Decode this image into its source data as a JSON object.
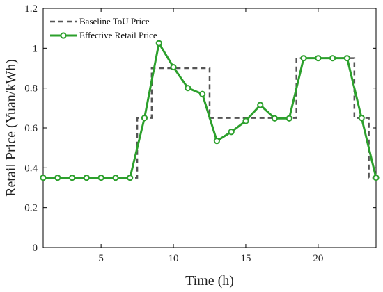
{
  "chart_data": {
    "type": "line",
    "xlabel": "Time (h)",
    "ylabel": "Retail Price (Yuan/kWh)",
    "xlim": [
      1,
      24
    ],
    "ylim": [
      0,
      1.2
    ],
    "xticks": [
      5,
      10,
      15,
      20
    ],
    "yticks": [
      0,
      0.2,
      0.4,
      0.6,
      0.8,
      1,
      1.2
    ],
    "xtick_labels": [
      "5",
      "10",
      "15",
      "20"
    ],
    "ytick_labels": [
      "0",
      "0.2",
      "0.4",
      "0.6",
      "0.8",
      "1",
      "1.2"
    ],
    "legend_position": "top-left",
    "series": [
      {
        "name": "Baseline ToU Price",
        "style": "dashed",
        "color": "#555555",
        "x": [
          1,
          7.5,
          7.5,
          8.5,
          8.5,
          12.5,
          12.5,
          18.5,
          18.5,
          22.5,
          22.5,
          23.5,
          23.5,
          24
        ],
        "y": [
          0.35,
          0.35,
          0.65,
          0.65,
          0.9,
          0.9,
          0.65,
          0.65,
          0.95,
          0.95,
          0.65,
          0.65,
          0.35,
          0.35
        ]
      },
      {
        "name": "Effective Retail Price",
        "style": "solid-with-circle-markers",
        "color": "#2ca02c",
        "x": [
          1,
          2,
          3,
          4,
          5,
          6,
          7,
          8,
          9,
          10,
          11,
          12,
          13,
          14,
          15,
          16,
          17,
          18,
          19,
          20,
          21,
          22,
          23,
          24
        ],
        "y": [
          0.35,
          0.35,
          0.35,
          0.35,
          0.35,
          0.35,
          0.35,
          0.65,
          1.025,
          0.905,
          0.8,
          0.77,
          0.535,
          0.58,
          0.635,
          0.715,
          0.648,
          0.648,
          0.95,
          0.95,
          0.95,
          0.95,
          0.65,
          0.35
        ]
      }
    ]
  }
}
